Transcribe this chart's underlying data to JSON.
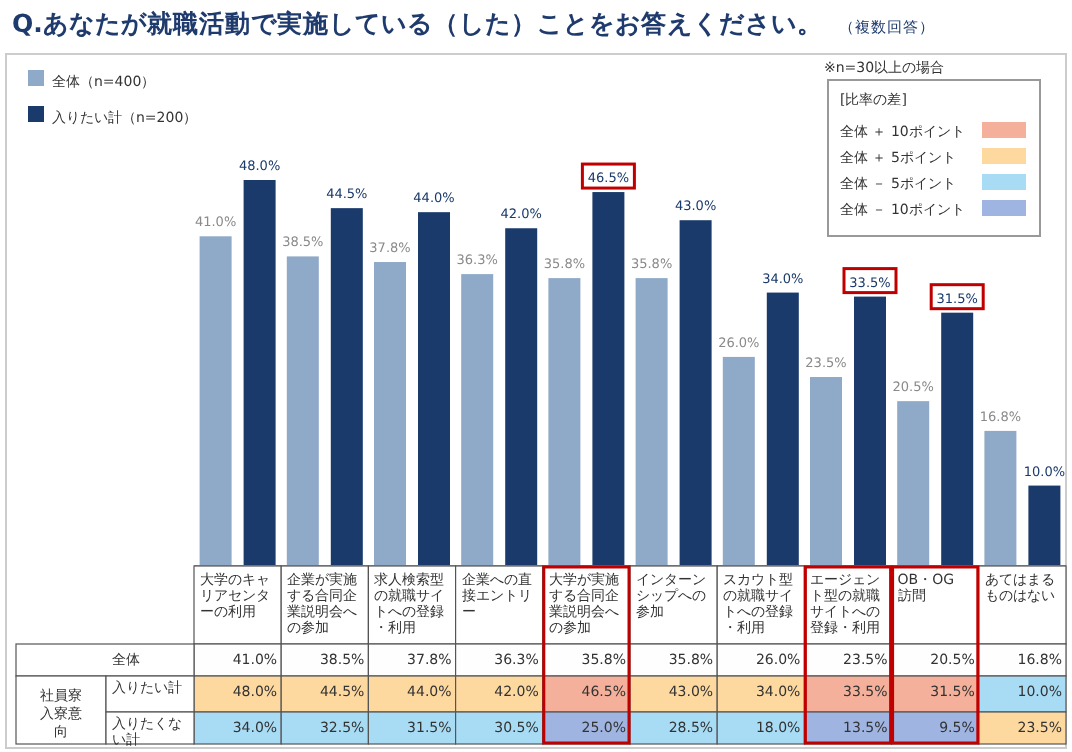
{
  "chart_data": [
    {
      "type": "bar",
      "title": "Q.あなたが就職活動で実施している（した）ことをお答えください。",
      "subtitle": "（複数回答）",
      "categories": [
        "大学のキャリアセンターの利用",
        "企業が実施する合同企業説明会への参加",
        "求人検索型の就職サイトへの登録・利用",
        "企業への直接エントリー",
        "大学が実施する合同企業説明会への参加",
        "インターンシップへの参加",
        "スカウト型の就職サイトへの登録・利用",
        "エージェント型の就職サイトへの登録・利用",
        "OB・OG訪問",
        "あてはまるものはない"
      ],
      "legend": "top left",
      "series": [
        {
          "name": "全体（n=400）",
          "color": "#8faac8",
          "values": [
            41.0,
            38.5,
            37.8,
            36.3,
            35.8,
            35.8,
            26.0,
            23.5,
            20.5,
            16.8
          ],
          "value_labels": [
            "41.0%",
            "38.5%",
            "37.8%",
            "36.3%",
            "35.8%",
            "35.8%",
            "26.0%",
            "23.5%",
            "20.5%",
            "16.8%"
          ]
        },
        {
          "name": "入りたい計（n=200）",
          "color": "#1a3a6b",
          "values": [
            48.0,
            44.5,
            44.0,
            42.0,
            46.5,
            43.0,
            34.0,
            33.5,
            31.5,
            10.0
          ],
          "value_labels": [
            "48.0%",
            "44.5%",
            "44.0%",
            "42.0%",
            "46.5%",
            "43.0%",
            "34.0%",
            "33.5%",
            "31.5%",
            "10.0%"
          ]
        }
      ]
    },
    {
      "type": "heatmap",
      "categories": [
        null,
        null,
        null,
        null,
        null,
        null,
        null,
        null,
        null,
        null
      ],
      "y_categories": [
        "全体",
        "入りたい計",
        "入りたくない計"
      ],
      "cells": [
        [
          41.0,
          38.5,
          37.8,
          36.3,
          35.8,
          35.8,
          26.0,
          23.5,
          20.5,
          16.8
        ],
        [
          48.0,
          44.5,
          44.0,
          42.0,
          46.5,
          43.0,
          34.0,
          33.5,
          31.5,
          10.0
        ],
        [
          34.0,
          32.5,
          31.5,
          30.5,
          25.0,
          28.5,
          18.0,
          13.5,
          9.5,
          23.5
        ]
      ],
      "cell_labels": [
        [
          "41.0%",
          "38.5%",
          "37.8%",
          "36.3%",
          "35.8%",
          "35.8%",
          "26.0%",
          "23.5%",
          "20.5%",
          "16.8%"
        ],
        [
          "48.0%",
          "44.5%",
          "44.0%",
          "42.0%",
          "46.5%",
          "43.0%",
          "34.0%",
          "33.5%",
          "31.5%",
          "10.0%"
        ],
        [
          "34.0%",
          "32.5%",
          "31.5%",
          "30.5%",
          "25.0%",
          "28.5%",
          "18.0%",
          "13.5%",
          "9.5%",
          "23.5%"
        ]
      ],
      "colors": [
        [
          "#fefefe",
          "#fefefe",
          "#fefefe",
          "#fefefe",
          "#fefefe",
          "#fefefe",
          "#fefefe",
          "#fefefe",
          "#fefefe",
          "#fefefe"
        ],
        [
          "#fdd9a0",
          "#fdd9a0",
          "#fdd9a0",
          "#fdd9a0",
          "#f4b09a",
          "#fdd9a0",
          "#fdd9a0",
          "#f4b09a",
          "#f4b09a",
          "#a8dcf5"
        ],
        [
          "#a8dcf5",
          "#a8dcf5",
          "#a8dcf5",
          "#a8dcf5",
          "#9fb4e0",
          "#a8dcf5",
          "#a8dcf5",
          "#9fb4e0",
          "#9fb4e0",
          "#fdd9a0"
        ]
      ],
      "legend_title": "[比率の差]",
      "legend": "top right",
      "series": [
        {
          "name": "全体 ＋ 10ポイント",
          "color": "#f4b09a",
          "values": [
            null,
            null,
            null,
            null,
            null,
            null,
            null,
            null,
            null,
            null
          ]
        },
        {
          "name": "全体 ＋ 5ポイント",
          "color": "#fdd9a0",
          "values": [
            null,
            null,
            null,
            null,
            null,
            null,
            null,
            null,
            null,
            null
          ]
        },
        {
          "name": "全体 － 5ポイント",
          "color": "#a8dcf5",
          "values": [
            null,
            null,
            null,
            null,
            null,
            null,
            null,
            null,
            null,
            null
          ]
        },
        {
          "name": "全体 － 10ポイント",
          "color": "#9fb4e0",
          "values": [
            null,
            null,
            null,
            null,
            null,
            null,
            null,
            null,
            null,
            null
          ]
        }
      ],
      "annotations": [
        "※n=30以上の場合",
        "社員寮入寮意向"
      ]
    }
  ]
}
